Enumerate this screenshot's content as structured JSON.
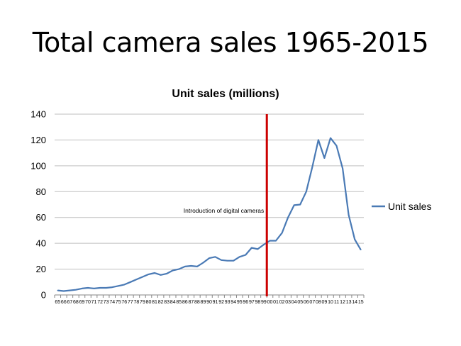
{
  "slide": {
    "title": "Total camera sales 1965-2015"
  },
  "chart_data": {
    "type": "line",
    "title": "Unit sales (millions)",
    "xlabel": "",
    "ylabel": "",
    "ylim": [
      0,
      140
    ],
    "yticks": [
      0,
      20,
      40,
      60,
      80,
      100,
      120,
      140
    ],
    "grid": true,
    "legend_position": "right",
    "categories": [
      "65",
      "66",
      "67",
      "68",
      "69",
      "70",
      "71",
      "72",
      "73",
      "74",
      "75",
      "76",
      "77",
      "78",
      "79",
      "80",
      "81",
      "82",
      "83",
      "84",
      "85",
      "86",
      "87",
      "88",
      "89",
      "90",
      "91",
      "92",
      "93",
      "94",
      "95",
      "96",
      "97",
      "98",
      "99",
      "00",
      "01",
      "02",
      "03",
      "04",
      "05",
      "06",
      "07",
      "08",
      "09",
      "10",
      "11",
      "12",
      "13",
      "14",
      "15"
    ],
    "series": [
      {
        "name": "Unit sales",
        "color": "#4a7ab5",
        "values": [
          3.5,
          3,
          3.5,
          4,
          5,
          5.5,
          5,
          5.5,
          5.5,
          6,
          7,
          8,
          10,
          12,
          14,
          16,
          17,
          15.5,
          16.5,
          19,
          20,
          22,
          22.5,
          22,
          25,
          28.5,
          29.5,
          27,
          26.5,
          26.5,
          29.5,
          31,
          36.5,
          35.5,
          39,
          42,
          42,
          48,
          60,
          69.5,
          70,
          80,
          99,
          120,
          106,
          121.5,
          115.5,
          98,
          62,
          43,
          35
        ]
      }
    ],
    "annotations": [
      {
        "text": "Introduction of digital cameras",
        "category": "99",
        "line_color": "#cc0000"
      }
    ]
  }
}
